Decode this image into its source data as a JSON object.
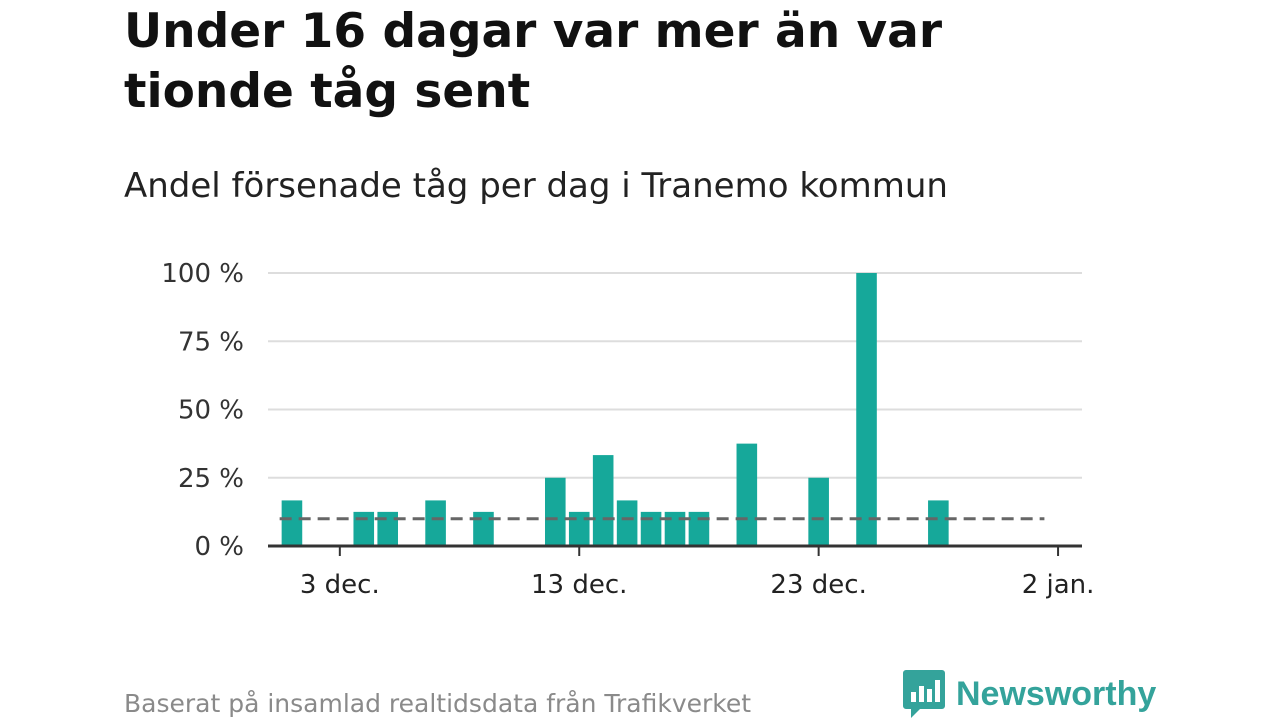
{
  "title": "Under 16 dagar var mer än var tionde tåg sent",
  "subtitle": "Andel försenade tåg per dag i Tranemo kommun",
  "footer": "Baserat på insamlad realtidsdata från Trafikverket",
  "brand": {
    "name": "Newsworthy",
    "icon": "newsworthy-logo-icon",
    "color": "#34a39b"
  },
  "colors": {
    "bar": "#16a89a",
    "grid": "#dddddd",
    "axis": "#333333",
    "reference": "#666666"
  },
  "chart_data": {
    "type": "bar",
    "ylim": [
      0,
      100
    ],
    "yticks": [
      {
        "value": 0,
        "label": "0 %"
      },
      {
        "value": 25,
        "label": "25 %"
      },
      {
        "value": 50,
        "label": "50 %"
      },
      {
        "value": 75,
        "label": "75 %"
      },
      {
        "value": 100,
        "label": "100 %"
      }
    ],
    "xlim": [
      "2023-11-30",
      "2024-01-03"
    ],
    "xticks": [
      {
        "date": "2023-12-03",
        "label": "3 dec."
      },
      {
        "date": "2023-12-13",
        "label": "13 dec."
      },
      {
        "date": "2023-12-23",
        "label": "23 dec."
      },
      {
        "date": "2024-01-02",
        "label": "2 jan."
      }
    ],
    "grid": true,
    "bars": [
      {
        "date": "2023-12-01",
        "value": 16.7
      },
      {
        "date": "2023-12-04",
        "value": 12.5
      },
      {
        "date": "2023-12-05",
        "value": 12.5
      },
      {
        "date": "2023-12-07",
        "value": 16.7
      },
      {
        "date": "2023-12-09",
        "value": 12.5
      },
      {
        "date": "2023-12-12",
        "value": 25
      },
      {
        "date": "2023-12-13",
        "value": 12.5
      },
      {
        "date": "2023-12-14",
        "value": 33.3
      },
      {
        "date": "2023-12-15",
        "value": 16.7
      },
      {
        "date": "2023-12-16",
        "value": 12.5
      },
      {
        "date": "2023-12-17",
        "value": 12.5
      },
      {
        "date": "2023-12-18",
        "value": 12.5
      },
      {
        "date": "2023-12-20",
        "value": 37.5
      },
      {
        "date": "2023-12-23",
        "value": 25
      },
      {
        "date": "2023-12-25",
        "value": 100
      },
      {
        "date": "2023-12-28",
        "value": 16.7
      }
    ],
    "reference_line": {
      "value": 10,
      "from": "2023-12-01",
      "to": "2024-01-01",
      "style": "dashed"
    }
  }
}
